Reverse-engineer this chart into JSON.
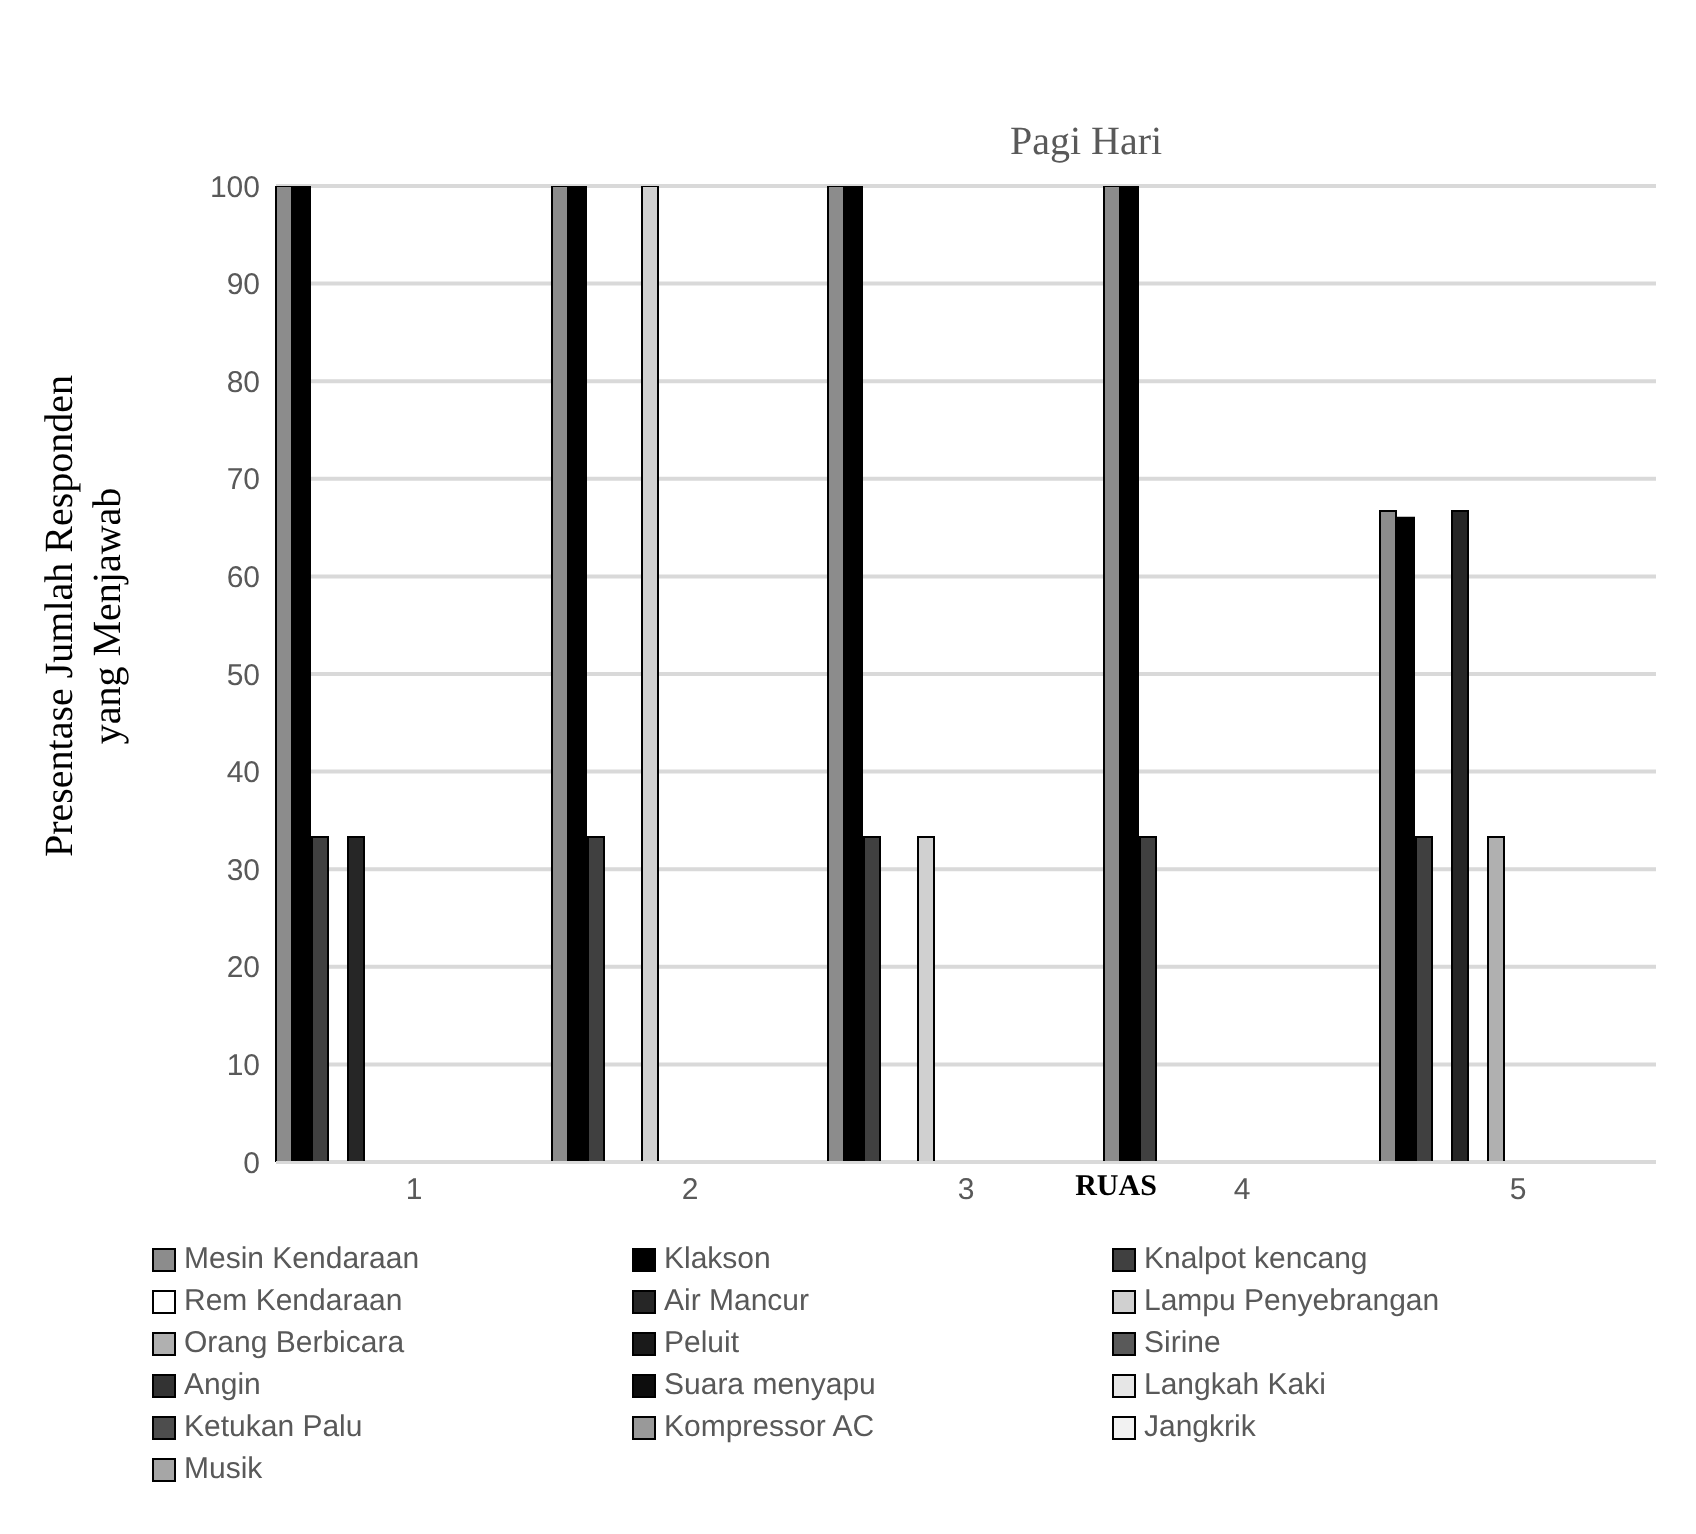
{
  "chart_data": {
    "type": "bar",
    "title": "Pagi Hari",
    "xlabel": "RUAS",
    "ylabel": "Presentase Jumlah Responden yang Menjawab",
    "categories": [
      "1",
      "2",
      "3",
      "4",
      "5"
    ],
    "ylim": [
      0,
      100
    ],
    "yticks": [
      0,
      10,
      20,
      30,
      40,
      50,
      60,
      70,
      80,
      90,
      100
    ],
    "grid": "y",
    "legend": "bottom",
    "series": [
      {
        "name": "Mesin Kendaraan",
        "color": "#8c8c8c",
        "values": [
          100,
          100,
          100,
          100,
          66.7
        ]
      },
      {
        "name": "Klakson",
        "color": "#000000",
        "values": [
          100,
          100,
          100,
          100,
          66
        ]
      },
      {
        "name": "Knalpot kencang",
        "color": "#404040",
        "values": [
          33.3,
          33.3,
          33.3,
          33.3,
          33.3
        ]
      },
      {
        "name": "Rem Kendaraan",
        "color": "#ffffff",
        "values": [
          0,
          0,
          0,
          0,
          0
        ]
      },
      {
        "name": "Air Mancur",
        "color": "#262626",
        "values": [
          33.3,
          0,
          0,
          0,
          66.7
        ]
      },
      {
        "name": "Lampu Penyebrangan",
        "color": "#d0d0d0",
        "values": [
          0,
          100,
          33.3,
          0,
          0
        ]
      },
      {
        "name": "Orang Berbicara",
        "color": "#b0b0b0",
        "values": [
          0,
          0,
          0,
          0,
          33.3
        ]
      },
      {
        "name": "Peluit",
        "color": "#1a1a1a",
        "values": [
          0,
          0,
          0,
          0,
          0
        ]
      },
      {
        "name": "Sirine",
        "color": "#595959",
        "values": [
          0,
          0,
          0,
          0,
          0
        ]
      },
      {
        "name": "Angin",
        "color": "#333333",
        "values": [
          0,
          0,
          0,
          0,
          0
        ]
      },
      {
        "name": "Suara menyapu",
        "color": "#0d0d0d",
        "values": [
          0,
          0,
          0,
          0,
          0
        ]
      },
      {
        "name": "Langkah Kaki",
        "color": "#e6e6e6",
        "values": [
          0,
          0,
          0,
          0,
          0
        ]
      },
      {
        "name": "Ketukan Palu",
        "color": "#4d4d4d",
        "values": [
          0,
          0,
          0,
          0,
          0
        ]
      },
      {
        "name": "Kompressor AC",
        "color": "#999999",
        "values": [
          0,
          0,
          0,
          0,
          0
        ]
      },
      {
        "name": "Jangkrik",
        "color": "#f2f2f2",
        "values": [
          0,
          0,
          0,
          0,
          0
        ]
      },
      {
        "name": "Musik",
        "color": "#a6a6a6",
        "values": [
          0,
          0,
          0,
          0,
          0
        ]
      }
    ]
  }
}
